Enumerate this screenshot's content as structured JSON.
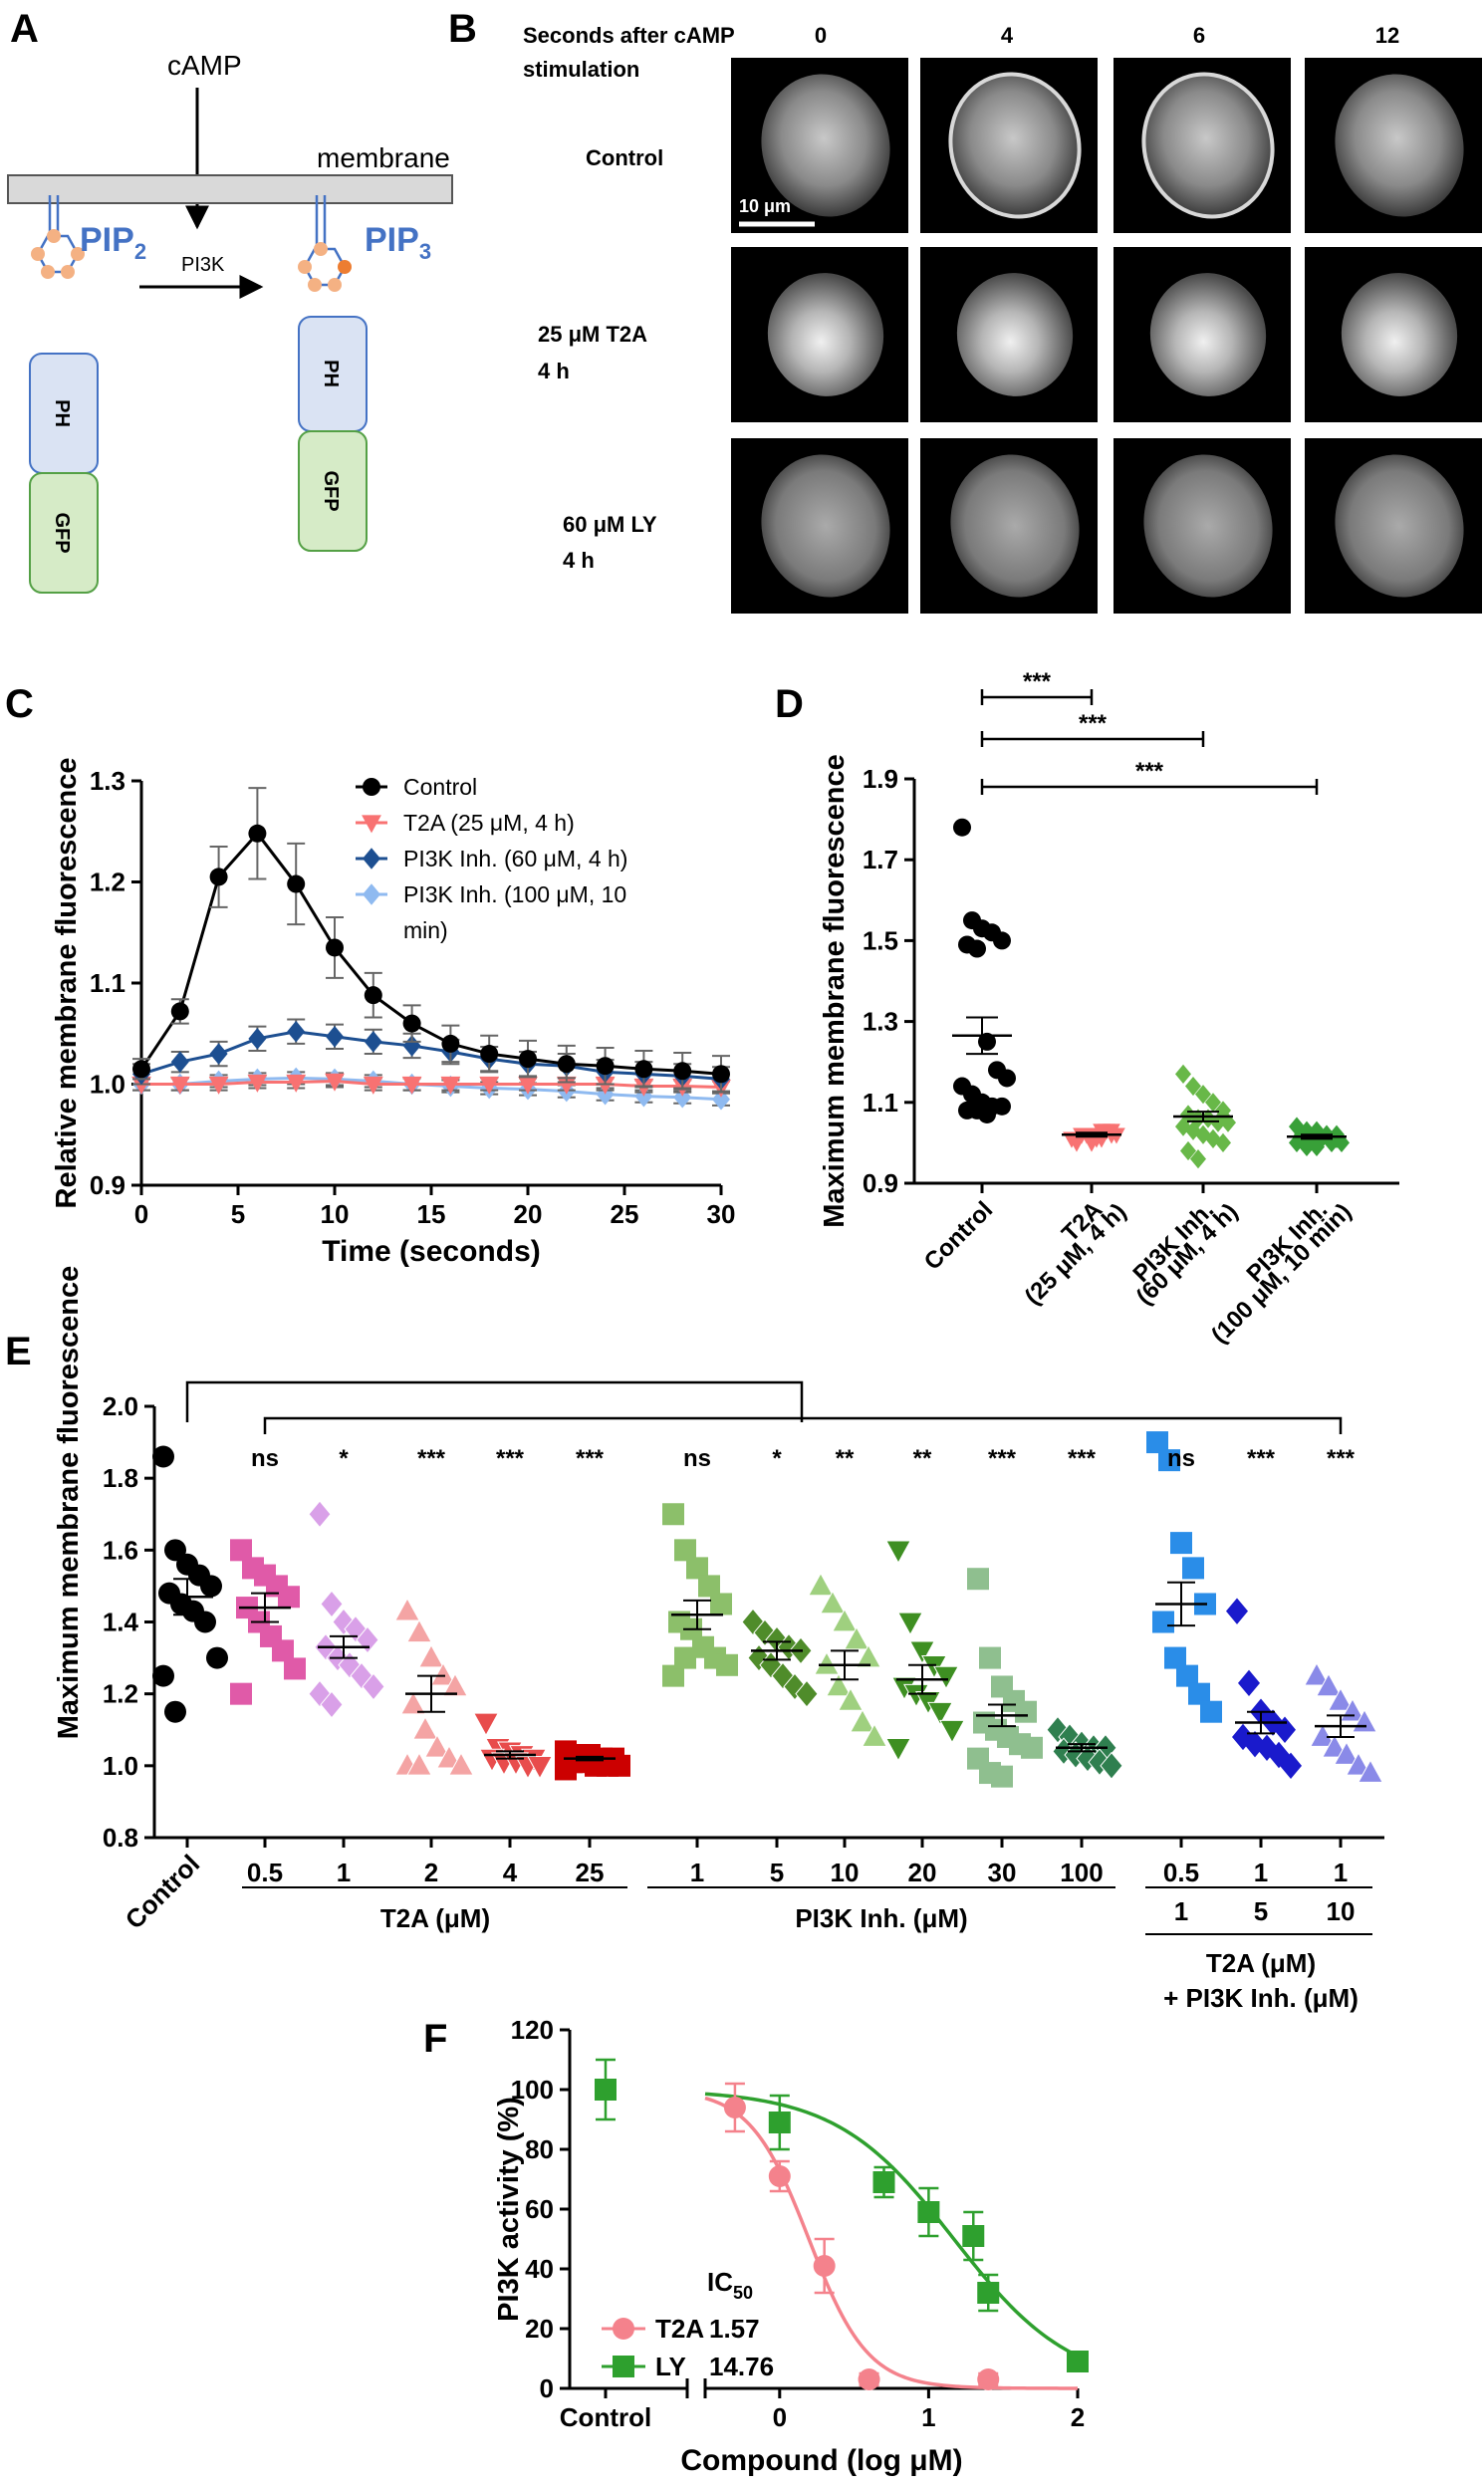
{
  "panel_letters": [
    "A",
    "B",
    "C",
    "D",
    "E",
    "F"
  ],
  "colors": {
    "control": "#000000",
    "t2a": "#f87272",
    "ly": "#1d4f91",
    "ly100": "#8fbaf0",
    "pip_blue": "#4472c4",
    "ph_fill": "#dae3f3",
    "ph_stroke": "#4472c4",
    "gfp_fill": "#d6ebc7",
    "gfp_stroke": "#54a045",
    "lipid": "#f4b183",
    "lipid_p": "#ed7d31",
    "t2a_fit": "#f4828c",
    "ly_fit": "#2e9d2e",
    "ly_f": "#2ea02e",
    "t2a_f": "#f4828c"
  },
  "panel_a": {
    "camp": "cAMP",
    "membrane": "membrane",
    "pip2": "PIP",
    "pip2_sub": "2",
    "pip3": "PIP",
    "pip3_sub": "3",
    "pi3k": "PI3K",
    "ph": "PH",
    "gfp": "GFP"
  },
  "panel_b": {
    "header_line1": "Seconds after cAMP",
    "header_line2": "stimulation",
    "times": [
      "0",
      "4",
      "6",
      "12"
    ],
    "rows": [
      {
        "line1": "Control",
        "line2": ""
      },
      {
        "line1": "25 μM T2A",
        "line2": "4 h"
      },
      {
        "line1": "60 μM LY",
        "line2": "4 h"
      }
    ],
    "scalebar": "10 μm"
  },
  "chart_data": [
    {
      "panel": "C",
      "type": "line",
      "xlabel": "Time (seconds)",
      "ylabel": "Relative membrane fluorescence",
      "xlim": [
        0,
        30
      ],
      "ylim": [
        0.9,
        1.3
      ],
      "xticks": [
        "0",
        "5",
        "10",
        "15",
        "20",
        "25",
        "30"
      ],
      "yticks": [
        "0.9",
        "1.0",
        "1.1",
        "1.2",
        "1.3"
      ],
      "x": [
        0,
        2,
        4,
        6,
        8,
        10,
        12,
        14,
        16,
        18,
        20,
        22,
        24,
        26,
        28,
        30
      ],
      "series": [
        {
          "name": "Control",
          "values": [
            1.015,
            1.072,
            1.205,
            1.248,
            1.198,
            1.135,
            1.088,
            1.06,
            1.04,
            1.03,
            1.025,
            1.02,
            1.018,
            1.015,
            1.013,
            1.01
          ],
          "err": [
            0.01,
            0.012,
            0.03,
            0.045,
            0.04,
            0.03,
            0.022,
            0.018,
            0.018,
            0.018,
            0.018,
            0.018,
            0.018,
            0.018,
            0.018,
            0.018
          ]
        },
        {
          "name": "T2A (25 μM, 4 h)",
          "values": [
            1.0,
            1.0,
            1.0,
            1.002,
            1.002,
            1.003,
            1.0,
            1.0,
            1.0,
            1.0,
            1.0,
            1.0,
            1.0,
            0.998,
            0.998,
            0.997
          ],
          "err": [
            0.006,
            0.006,
            0.006,
            0.006,
            0.006,
            0.006,
            0.006,
            0.006,
            0.006,
            0.006,
            0.006,
            0.006,
            0.006,
            0.006,
            0.006,
            0.006
          ]
        },
        {
          "name": "PI3K Inh. (60 μM, 4 h)",
          "values": [
            1.01,
            1.022,
            1.03,
            1.045,
            1.052,
            1.047,
            1.042,
            1.038,
            1.032,
            1.025,
            1.02,
            1.018,
            1.012,
            1.01,
            1.008,
            1.005
          ],
          "err": [
            0.01,
            0.01,
            0.012,
            0.012,
            0.012,
            0.012,
            0.012,
            0.012,
            0.012,
            0.012,
            0.012,
            0.012,
            0.012,
            0.012,
            0.012,
            0.012
          ]
        },
        {
          "name": "PI3K Inh. (100 μM, 10 min)",
          "values": [
            1.0,
            1.0,
            1.003,
            1.005,
            1.006,
            1.005,
            1.003,
            1.0,
            0.998,
            0.996,
            0.995,
            0.993,
            0.99,
            0.988,
            0.987,
            0.985
          ],
          "err": [
            0.006,
            0.006,
            0.006,
            0.006,
            0.006,
            0.006,
            0.006,
            0.006,
            0.006,
            0.006,
            0.006,
            0.006,
            0.006,
            0.006,
            0.006,
            0.006
          ]
        }
      ],
      "legend": [
        "Control",
        "T2A (25 μM, 4 h)",
        "PI3K Inh. (60 μM, 4 h)",
        "PI3K Inh. (100 μM, 10",
        "min)"
      ]
    },
    {
      "panel": "D",
      "type": "scatter",
      "ylabel": "Maximum membrane fluorescence",
      "ylim": [
        0.9,
        1.9
      ],
      "yticks": [
        "0.9",
        "1.1",
        "1.3",
        "1.5",
        "1.7",
        "1.9"
      ],
      "groups": [
        {
          "line1": "Control",
          "line2": "",
          "mean": 1.265,
          "sem": 0.045,
          "points": [
            1.78,
            1.55,
            1.53,
            1.52,
            1.5,
            1.49,
            1.48,
            1.25,
            1.18,
            1.16,
            1.14,
            1.12,
            1.1,
            1.09,
            1.09,
            1.08,
            1.08,
            1.07
          ]
        },
        {
          "line1": "T2A",
          "line2": "(25 μM, 4 h)",
          "mean": 1.02,
          "sem": 0.005,
          "points": [
            1.01,
            1.02,
            1.02,
            1.01,
            1.03,
            1.0,
            1.02,
            1.01,
            1.03,
            1.02,
            1.01,
            1.02,
            1.0,
            1.03,
            1.02,
            1.01
          ]
        },
        {
          "line1": "PI3K Inh.",
          "line2": "(60 μM, 4 h)",
          "mean": 1.065,
          "sem": 0.012,
          "points": [
            1.17,
            1.14,
            1.12,
            1.1,
            1.08,
            1.07,
            1.06,
            1.06,
            1.05,
            1.05,
            1.04,
            1.03,
            1.02,
            1.01,
            1.0,
            0.98,
            0.96
          ]
        },
        {
          "line1": "PI3K Inh.",
          "line2": "(100 μM, 10 min)",
          "mean": 1.015,
          "sem": 0.005,
          "points": [
            1.04,
            1.03,
            1.03,
            1.02,
            1.02,
            1.02,
            1.01,
            1.01,
            1.0,
            1.0,
            1.0,
            0.99,
            0.99,
            1.02,
            1.01
          ]
        }
      ],
      "significance": [
        "***",
        "***",
        "***"
      ]
    },
    {
      "panel": "E",
      "type": "scatter",
      "ylabel": "Maximum membrane fluorescence",
      "ylim": [
        0.8,
        2.0
      ],
      "yticks": [
        "0.8",
        "1.0",
        "1.2",
        "1.4",
        "1.6",
        "1.8",
        "2.0"
      ],
      "groups": [
        {
          "label": "Control",
          "shape": "circle",
          "color": "#000000",
          "mean": 1.47,
          "sem": 0.05,
          "sig": "",
          "points": [
            1.86,
            1.6,
            1.56,
            1.53,
            1.5,
            1.48,
            1.45,
            1.43,
            1.4,
            1.3,
            1.25,
            1.15
          ]
        },
        {
          "label": "0.5",
          "shape": "square",
          "color": "#e05aa8",
          "mean": 1.44,
          "sem": 0.04,
          "sig": "ns",
          "points": [
            1.6,
            1.55,
            1.53,
            1.5,
            1.47,
            1.44,
            1.4,
            1.36,
            1.32,
            1.27,
            1.2
          ]
        },
        {
          "label": "1",
          "shape": "diamond",
          "color": "#d9a0e8",
          "mean": 1.33,
          "sem": 0.03,
          "sig": "*",
          "points": [
            1.7,
            1.45,
            1.4,
            1.38,
            1.35,
            1.33,
            1.3,
            1.28,
            1.25,
            1.22,
            1.2,
            1.17
          ]
        },
        {
          "label": "2",
          "shape": "triangle",
          "color": "#f4a4a4",
          "mean": 1.2,
          "sem": 0.05,
          "sig": "***",
          "points": [
            1.43,
            1.37,
            1.3,
            1.25,
            1.22,
            1.17,
            1.1,
            1.05,
            1.02,
            1.0,
            1.0,
            1.0
          ]
        },
        {
          "label": "4",
          "shape": "triangle-down",
          "color": "#e84c4c",
          "mean": 1.03,
          "sem": 0.01,
          "sig": "***",
          "points": [
            1.12,
            1.05,
            1.04,
            1.03,
            1.02,
            1.02,
            1.01,
            1.01,
            1.0,
            1.0
          ]
        },
        {
          "label": "25",
          "shape": "square",
          "color": "#cc0000",
          "mean": 1.02,
          "sem": 0.005,
          "sig": "***",
          "points": [
            1.04,
            1.03,
            1.03,
            1.02,
            1.02,
            1.01,
            1.01,
            1.0,
            1.0,
            1.0,
            0.99
          ]
        },
        {
          "label": "1",
          "shape": "square",
          "color": "#8cbf6a",
          "mean": 1.42,
          "sem": 0.04,
          "sig": "ns",
          "points": [
            1.7,
            1.6,
            1.55,
            1.5,
            1.45,
            1.4,
            1.38,
            1.33,
            1.3,
            1.28,
            1.25,
            1.3
          ]
        },
        {
          "label": "5",
          "shape": "diamond",
          "color": "#4f8c2a",
          "mean": 1.32,
          "sem": 0.025,
          "sig": "*",
          "points": [
            1.4,
            1.37,
            1.35,
            1.33,
            1.32,
            1.3,
            1.28,
            1.25,
            1.22,
            1.2
          ]
        },
        {
          "label": "10",
          "shape": "triangle",
          "color": "#9fd07f",
          "mean": 1.28,
          "sem": 0.04,
          "sig": "**",
          "points": [
            1.5,
            1.45,
            1.4,
            1.35,
            1.3,
            1.28,
            1.22,
            1.18,
            1.12,
            1.08
          ]
        },
        {
          "label": "20",
          "shape": "triangle-down",
          "color": "#3e8f22",
          "mean": 1.24,
          "sem": 0.04,
          "sig": "**",
          "points": [
            1.6,
            1.4,
            1.32,
            1.28,
            1.25,
            1.22,
            1.2,
            1.18,
            1.15,
            1.1,
            1.05
          ]
        },
        {
          "label": "30",
          "shape": "square",
          "color": "#8fbf8f",
          "mean": 1.14,
          "sem": 0.03,
          "sig": "***",
          "points": [
            1.52,
            1.3,
            1.22,
            1.18,
            1.15,
            1.12,
            1.1,
            1.08,
            1.06,
            1.05,
            1.02,
            0.98,
            0.97
          ]
        },
        {
          "label": "100",
          "shape": "diamond",
          "color": "#2f7f4f",
          "mean": 1.05,
          "sem": 0.01,
          "sig": "***",
          "points": [
            1.1,
            1.08,
            1.06,
            1.05,
            1.05,
            1.04,
            1.03,
            1.02,
            1.01,
            1.0
          ]
        },
        {
          "label": "0.5",
          "shape": "square",
          "color": "#2a8de8",
          "mean": 1.45,
          "sem": 0.06,
          "sig": "ns",
          "points": [
            1.9,
            1.85,
            1.62,
            1.55,
            1.45,
            1.4,
            1.3,
            1.25,
            1.2,
            1.15
          ]
        },
        {
          "label": "1",
          "shape": "diamond",
          "color": "#1a1acc",
          "mean": 1.12,
          "sem": 0.03,
          "sig": "***",
          "points": [
            1.43,
            1.23,
            1.15,
            1.12,
            1.1,
            1.08,
            1.06,
            1.05,
            1.03,
            1.0
          ]
        },
        {
          "label": "1",
          "shape": "triangle",
          "color": "#8a8ae8",
          "mean": 1.11,
          "sem": 0.03,
          "sig": "***",
          "points": [
            1.25,
            1.22,
            1.18,
            1.15,
            1.12,
            1.08,
            1.05,
            1.03,
            1.0,
            0.98
          ]
        }
      ],
      "combo_second_row": [
        "1",
        "5",
        "10"
      ],
      "group_labels": [
        "T2A (μM)",
        "PI3K Inh. (μM)",
        "T2A (μM)",
        "+ PI3K Inh. (μM)"
      ],
      "control_label": "Control"
    },
    {
      "panel": "F",
      "type": "scatter",
      "xlabel": "Compound (log μM)",
      "ylabel": "PI3K activity (%)",
      "ylim": [
        0,
        120
      ],
      "xlim": [
        -0.5,
        2
      ],
      "yticks": [
        "0",
        "20",
        "40",
        "60",
        "80",
        "100",
        "120"
      ],
      "xticks": [
        "0",
        "1",
        "2"
      ],
      "control_label": "Control",
      "control_point": {
        "value": 100,
        "err": 10
      },
      "series": [
        {
          "name": "T2A",
          "ic50": "1.57",
          "x": [
            -0.3,
            0,
            0.3,
            0.6,
            1.4
          ],
          "values": [
            94,
            71,
            41,
            3,
            3
          ],
          "err": [
            8,
            5,
            9,
            2,
            2
          ]
        },
        {
          "name": "LY",
          "ic50": "14.76",
          "x": [
            0,
            0.7,
            1.0,
            1.3,
            1.4,
            2.0
          ],
          "values": [
            89,
            69,
            59,
            51,
            32,
            9
          ],
          "err": [
            9,
            5,
            8,
            8,
            6,
            2
          ]
        }
      ],
      "ic50_label": "IC",
      "ic50_sub": "50"
    }
  ]
}
